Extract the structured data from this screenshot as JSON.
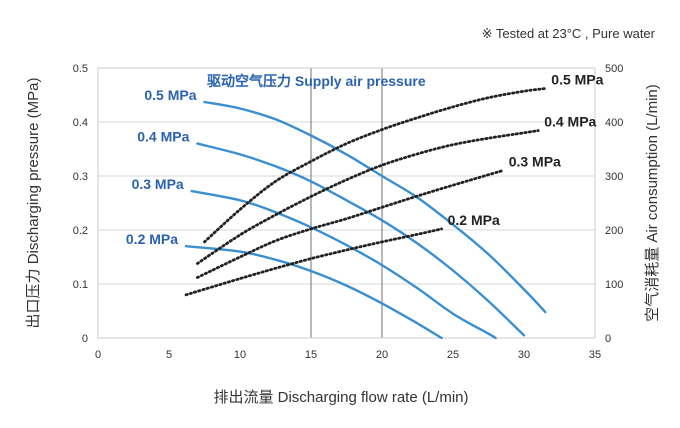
{
  "note": "※  Tested at  23°C , Pure water",
  "chart_data": {
    "type": "line",
    "xlabel": "排出流量 Discharging flow rate (L/min)",
    "ylabel": "出口压力 Discharging pressure (MPa)",
    "y2label": "空气消耗量 Air consumption (L/min)",
    "legend_title": "驱动空气压力 Supply air pressure",
    "xlim": [
      0,
      35
    ],
    "ylim": [
      0,
      0.5
    ],
    "y2lim": [
      0,
      500
    ],
    "xticks": [
      "0",
      "5",
      "10",
      "15",
      "20",
      "25",
      "30",
      "35"
    ],
    "yticks": [
      "0",
      "0.1",
      "0.2",
      "0.3",
      "0.4",
      "0.5"
    ],
    "y2ticks": [
      "0",
      "100",
      "200",
      "300",
      "400",
      "500"
    ],
    "vlines": [
      15,
      20
    ],
    "pressure_series": [
      {
        "name": "0.5 MPa",
        "x": [
          7.5,
          10,
          12.5,
          15,
          17.5,
          20,
          22.5,
          25,
          27.5,
          30,
          31.5
        ],
        "y": [
          0.437,
          0.425,
          0.405,
          0.375,
          0.34,
          0.3,
          0.26,
          0.21,
          0.155,
          0.09,
          0.048
        ]
      },
      {
        "name": "0.4 MPa",
        "x": [
          7,
          10,
          12.5,
          15,
          17.5,
          20,
          22.5,
          25,
          27.5,
          30
        ],
        "y": [
          0.36,
          0.34,
          0.318,
          0.29,
          0.255,
          0.218,
          0.175,
          0.125,
          0.068,
          0.005
        ]
      },
      {
        "name": "0.3 MPa",
        "x": [
          6.6,
          10,
          12.5,
          15,
          17.5,
          20,
          22.5,
          25,
          27.5,
          28
        ],
        "y": [
          0.272,
          0.255,
          0.233,
          0.205,
          0.172,
          0.135,
          0.092,
          0.045,
          0.008,
          0
        ]
      },
      {
        "name": "0.2 MPa",
        "x": [
          6.2,
          10,
          12.5,
          15,
          17.5,
          20,
          22.5,
          24.2
        ],
        "y": [
          0.17,
          0.16,
          0.145,
          0.124,
          0.097,
          0.064,
          0.027,
          0
        ]
      }
    ],
    "air_series": [
      {
        "name": "0.5 MPa",
        "x": [
          7.5,
          10,
          12.5,
          15,
          17.5,
          20,
          22.5,
          25,
          27.5,
          30,
          31.5
        ],
        "y": [
          178,
          238,
          290,
          327,
          360,
          386,
          408,
          428,
          445,
          457,
          462
        ]
      },
      {
        "name": "0.4 MPa",
        "x": [
          7,
          10,
          12.5,
          15,
          17.5,
          20,
          22.5,
          25,
          27.5,
          30,
          31
        ],
        "y": [
          138,
          191,
          228,
          262,
          293,
          320,
          341,
          358,
          370,
          380,
          384
        ]
      },
      {
        "name": "0.3 MPa",
        "x": [
          7,
          10,
          12.5,
          15,
          17.5,
          20,
          22.5,
          25,
          28.5
        ],
        "y": [
          112,
          150,
          180,
          202,
          221,
          242,
          263,
          283,
          310
        ]
      },
      {
        "name": "0.2 MPa",
        "x": [
          6.2,
          10,
          12.5,
          15,
          17.5,
          20,
          22.5,
          24.2
        ],
        "y": [
          80,
          110,
          129,
          147,
          163,
          178,
          192,
          202
        ]
      }
    ],
    "colors": {
      "pressure": "#3a8fd1",
      "air": "#222222",
      "grid": "#d9d9d9",
      "vline": "#888888",
      "label_blue": "#2a62b0"
    }
  }
}
